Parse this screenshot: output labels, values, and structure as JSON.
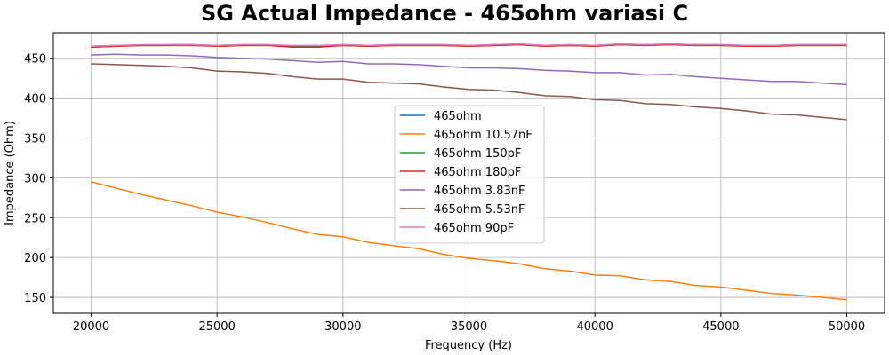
{
  "chart_data": {
    "type": "line",
    "title": "SG Actual Impedance - 465ohm variasi C",
    "xlabel": "Frequency (Hz)",
    "ylabel": "Impedance (Ohm)",
    "xlim": [
      18500,
      51500
    ],
    "ylim": [
      130,
      482
    ],
    "xticks": [
      20000,
      25000,
      30000,
      35000,
      40000,
      45000,
      50000
    ],
    "yticks": [
      150,
      200,
      250,
      300,
      350,
      400,
      450
    ],
    "grid": true,
    "legend_position": "center",
    "x": [
      20000,
      21000,
      22000,
      23000,
      24000,
      25000,
      26000,
      27000,
      28000,
      29000,
      30000,
      31000,
      32000,
      33000,
      34000,
      35000,
      36000,
      37000,
      38000,
      39000,
      40000,
      41000,
      42000,
      43000,
      44000,
      45000,
      46000,
      47000,
      48000,
      49000,
      50000
    ],
    "series": [
      {
        "name": "465ohm",
        "color": "#1f77b4",
        "values": [
          465,
          466,
          466,
          467,
          467,
          466,
          467,
          467,
          465,
          465,
          467,
          466,
          467,
          467,
          467,
          466,
          467,
          468,
          466,
          467,
          466,
          468,
          467,
          468,
          467,
          467,
          466,
          466,
          467,
          467,
          467
        ]
      },
      {
        "name": "465ohm 10.57nF",
        "color": "#ff7f0e",
        "values": [
          295,
          287,
          279,
          272,
          265,
          257,
          251,
          244,
          236,
          229,
          226,
          219,
          215,
          211,
          204,
          199,
          196,
          192,
          186,
          183,
          178,
          177,
          172,
          170,
          165,
          163,
          159,
          155,
          153,
          150,
          147
        ]
      },
      {
        "name": "465ohm 150pF",
        "color": "#2ca02c",
        "values": [
          464,
          465,
          466,
          466,
          467,
          465,
          466,
          466,
          465,
          464,
          466,
          465,
          466,
          466,
          466,
          465,
          466,
          467,
          465,
          466,
          465,
          467,
          466,
          467,
          466,
          466,
          465,
          465,
          466,
          466,
          466
        ]
      },
      {
        "name": "465ohm 180pF",
        "color": "#d62728",
        "values": [
          464,
          465,
          466,
          466,
          466,
          465,
          466,
          466,
          464,
          464,
          466,
          465,
          466,
          466,
          466,
          465,
          466,
          467,
          465,
          466,
          465,
          467,
          466,
          467,
          466,
          466,
          465,
          465,
          466,
          466,
          466
        ]
      },
      {
        "name": "465ohm 3.83nF",
        "color": "#9467bd",
        "values": [
          454,
          455,
          454,
          454,
          453,
          451,
          450,
          449,
          447,
          445,
          446,
          443,
          443,
          442,
          440,
          438,
          438,
          437,
          435,
          434,
          432,
          432,
          429,
          430,
          427,
          425,
          423,
          421,
          421,
          419,
          417
        ]
      },
      {
        "name": "465ohm 5.53nF",
        "color": "#8c564b",
        "values": [
          443,
          442,
          441,
          440,
          438,
          434,
          433,
          431,
          427,
          424,
          424,
          420,
          419,
          418,
          414,
          411,
          410,
          407,
          403,
          402,
          398,
          397,
          393,
          392,
          389,
          387,
          384,
          380,
          379,
          376,
          373
        ]
      },
      {
        "name": "465ohm 90pF",
        "color": "#e377c2",
        "values": [
          465,
          466,
          467,
          467,
          467,
          466,
          467,
          467,
          466,
          466,
          467,
          466,
          467,
          467,
          467,
          466,
          467,
          468,
          466,
          467,
          466,
          468,
          467,
          468,
          467,
          467,
          466,
          466,
          467,
          467,
          467
        ]
      }
    ]
  }
}
